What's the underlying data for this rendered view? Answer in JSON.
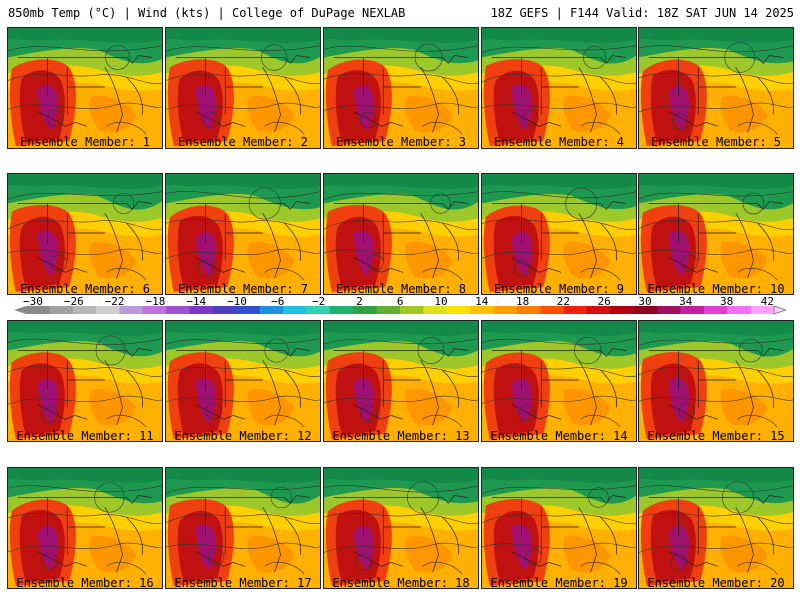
{
  "header": {
    "left": "850mb Temp (°C) | Wind (kts) | College of DuPage NEXLAB",
    "right": "18Z GEFS | F144 Valid: 18Z SAT JUN 14 2025"
  },
  "colorbar": {
    "tick_labels": [
      "−30",
      "−26",
      "−22",
      "−18",
      "−14",
      "−10",
      "−6",
      "−2",
      "2",
      "6",
      "10",
      "14",
      "18",
      "22",
      "26",
      "30",
      "34",
      "38",
      "42"
    ],
    "colors": [
      "#8a8a8a",
      "#a0a0a0",
      "#b8b8b8",
      "#cfcfcf",
      "#b89ad8",
      "#c070e0",
      "#a050d0",
      "#7a3cc8",
      "#4a40c0",
      "#3050d0",
      "#2090e0",
      "#20c0e0",
      "#30d0b0",
      "#20b070",
      "#30a040",
      "#60b030",
      "#a0c820",
      "#e0e020",
      "#ffe000",
      "#ffc000",
      "#ffa000",
      "#ff8000",
      "#ff5000",
      "#f02010",
      "#d01010",
      "#b00010",
      "#900020",
      "#a01060",
      "#c020a0",
      "#e040d0",
      "#f070f0",
      "#ffa0ff"
    ]
  },
  "members": [
    {
      "label": "Ensemble Member: 1"
    },
    {
      "label": "Ensemble Member: 2"
    },
    {
      "label": "Ensemble Member: 3"
    },
    {
      "label": "Ensemble Member: 4"
    },
    {
      "label": "Ensemble Member: 5"
    },
    {
      "label": "Ensemble Member: 6"
    },
    {
      "label": "Ensemble Member: 7"
    },
    {
      "label": "Ensemble Member: 8"
    },
    {
      "label": "Ensemble Member: 9"
    },
    {
      "label": "Ensemble Member: 10"
    },
    {
      "label": "Ensemble Member: 11"
    },
    {
      "label": "Ensemble Member: 12"
    },
    {
      "label": "Ensemble Member: 13"
    },
    {
      "label": "Ensemble Member: 14"
    },
    {
      "label": "Ensemble Member: 15"
    },
    {
      "label": "Ensemble Member: 16"
    },
    {
      "label": "Ensemble Member: 17"
    },
    {
      "label": "Ensemble Member: 18"
    },
    {
      "label": "Ensemble Member: 19"
    },
    {
      "label": "Ensemble Member: 20"
    }
  ]
}
